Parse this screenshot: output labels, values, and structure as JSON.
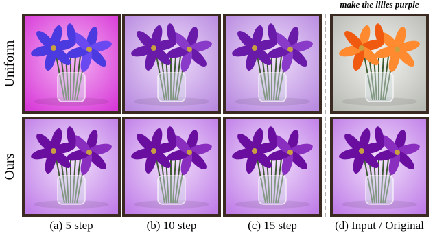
{
  "header": {
    "prompt": "make the lilies purple"
  },
  "rows": [
    "Uniform",
    "Ours"
  ],
  "columns": [
    "(a) 5 step",
    "(b) 10 step",
    "(c) 15 step",
    "(d) Input / Original"
  ]
}
